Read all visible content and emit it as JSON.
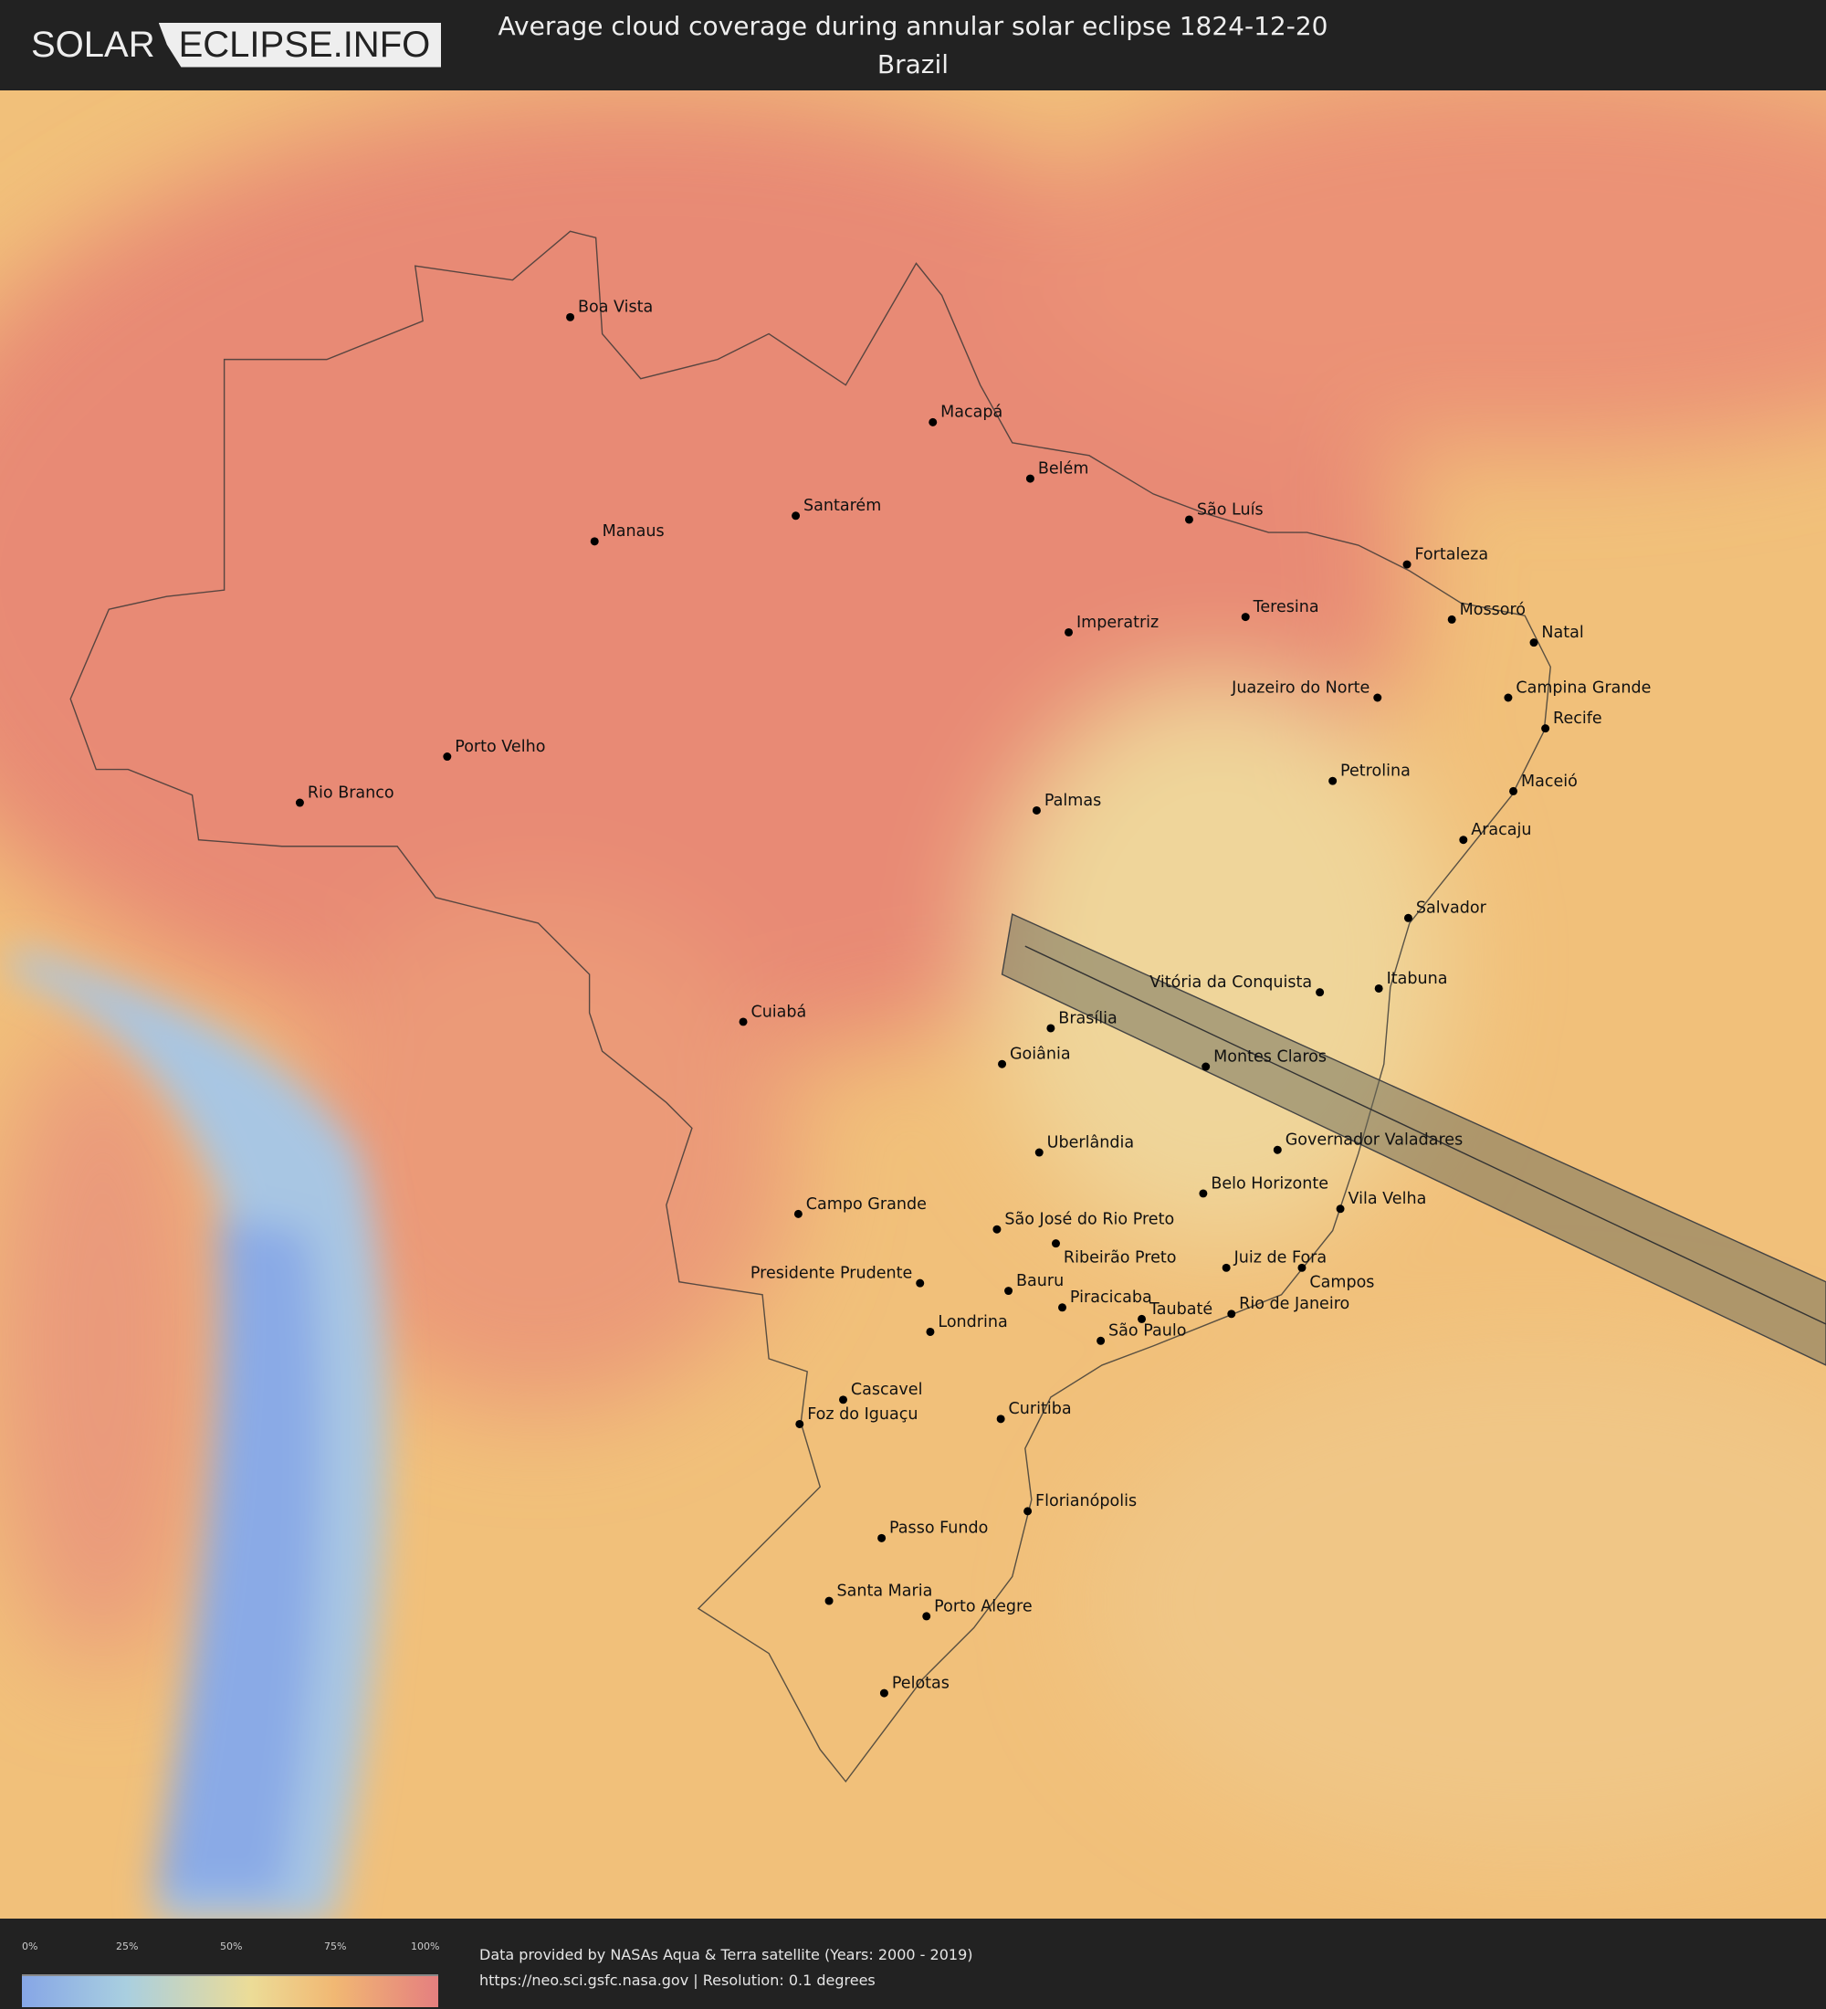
{
  "header": {
    "logo_left": "SOLAR",
    "logo_right": "ECLIPSE.INFO",
    "title": "Average cloud coverage during annular solar eclipse 1824-12-20",
    "subtitle": "Brazil"
  },
  "legend": {
    "ticks": [
      "0%",
      "25%",
      "50%",
      "75%",
      "100%"
    ],
    "colors": [
      "#86a6e6",
      "#a9cfe0",
      "#ecdc97",
      "#f1b873",
      "#e57f7f"
    ]
  },
  "credits": {
    "line1": "Data provided by NASAs Aqua & Terra satellite (Years: 2000 - 2019)",
    "line2": "https://neo.sci.gsfc.nasa.gov | Resolution: 0.1 degrees"
  },
  "eclipse_path": {
    "color": "#6b6b5a"
  },
  "cities": [
    {
      "name": "Boa Vista",
      "p": [
        445,
        247
      ]
    },
    {
      "name": "Macapá",
      "p": [
        728,
        329
      ]
    },
    {
      "name": "Belém",
      "p": [
        804,
        373
      ]
    },
    {
      "name": "Santarém",
      "p": [
        621,
        402
      ]
    },
    {
      "name": "Manaus",
      "p": [
        464,
        422
      ]
    },
    {
      "name": "São Luís",
      "p": [
        928,
        405
      ]
    },
    {
      "name": "Fortaleza",
      "p": [
        1098,
        440
      ]
    },
    {
      "name": "Teresina",
      "p": [
        972,
        481
      ]
    },
    {
      "name": "Mossoró",
      "p": [
        1133,
        483
      ]
    },
    {
      "name": "Imperatriz",
      "p": [
        834,
        493
      ]
    },
    {
      "name": "Natal",
      "p": [
        1197,
        501
      ]
    },
    {
      "name": "Juazeiro do Norte",
      "p": [
        1075,
        544
      ]
    },
    {
      "name": "Campina Grande",
      "p": [
        1177,
        544
      ]
    },
    {
      "name": "Recife",
      "p": [
        1206,
        568
      ]
    },
    {
      "name": "Porto Velho",
      "p": [
        349,
        590
      ]
    },
    {
      "name": "Petrolina",
      "p": [
        1040,
        609
      ]
    },
    {
      "name": "Maceió",
      "p": [
        1181,
        617
      ]
    },
    {
      "name": "Rio Branco",
      "p": [
        234,
        626
      ]
    },
    {
      "name": "Palmas",
      "p": [
        809,
        632
      ]
    },
    {
      "name": "Aracaju",
      "p": [
        1142,
        655
      ]
    },
    {
      "name": "Salvador",
      "p": [
        1099,
        716
      ]
    },
    {
      "name": "Vitória da Conquista",
      "p": [
        1030,
        774
      ]
    },
    {
      "name": "Itabuna",
      "p": [
        1076,
        771
      ]
    },
    {
      "name": "Cuiabá",
      "p": [
        580,
        797
      ]
    },
    {
      "name": "Brasília",
      "p": [
        820,
        802
      ]
    },
    {
      "name": "Goiânia",
      "p": [
        782,
        830
      ]
    },
    {
      "name": "Montes Claros",
      "p": [
        941,
        832
      ]
    },
    {
      "name": "Uberlândia",
      "p": [
        811,
        899
      ]
    },
    {
      "name": "Governador Valadares",
      "p": [
        997,
        897
      ]
    },
    {
      "name": "Belo Horizonte",
      "p": [
        939,
        931
      ]
    },
    {
      "name": "Campo Grande",
      "p": [
        623,
        947
      ]
    },
    {
      "name": "Vila Velha",
      "p": [
        1046,
        943
      ]
    },
    {
      "name": "São José do Rio Preto",
      "p": [
        778,
        959
      ]
    },
    {
      "name": "Ribeirão Preto",
      "p": [
        824,
        970
      ]
    },
    {
      "name": "Juiz de Fora",
      "p": [
        957,
        989
      ]
    },
    {
      "name": "Campos",
      "p": [
        1016,
        989
      ]
    },
    {
      "name": "Presidente Prudente",
      "p": [
        718,
        1001
      ]
    },
    {
      "name": "Bauru",
      "p": [
        787,
        1007
      ]
    },
    {
      "name": "Piracicaba",
      "p": [
        829,
        1020
      ]
    },
    {
      "name": "Taubaté",
      "p": [
        891,
        1029
      ]
    },
    {
      "name": "Rio de Janeiro",
      "p": [
        961,
        1025
      ]
    },
    {
      "name": "São Paulo",
      "p": [
        859,
        1046
      ]
    },
    {
      "name": "Londrina",
      "p": [
        726,
        1039
      ]
    },
    {
      "name": "Cascavel",
      "p": [
        658,
        1092
      ]
    },
    {
      "name": "Foz do Iguaçu",
      "p": [
        624,
        1111
      ]
    },
    {
      "name": "Curitiba",
      "p": [
        781,
        1107
      ]
    },
    {
      "name": "Florianópolis",
      "p": [
        802,
        1179
      ]
    },
    {
      "name": "Passo Fundo",
      "p": [
        688,
        1200
      ]
    },
    {
      "name": "Santa Maria",
      "p": [
        647,
        1249
      ]
    },
    {
      "name": "Porto Alegre",
      "p": [
        723,
        1261
      ]
    },
    {
      "name": "Pelotas",
      "p": [
        690,
        1321
      ]
    }
  ]
}
